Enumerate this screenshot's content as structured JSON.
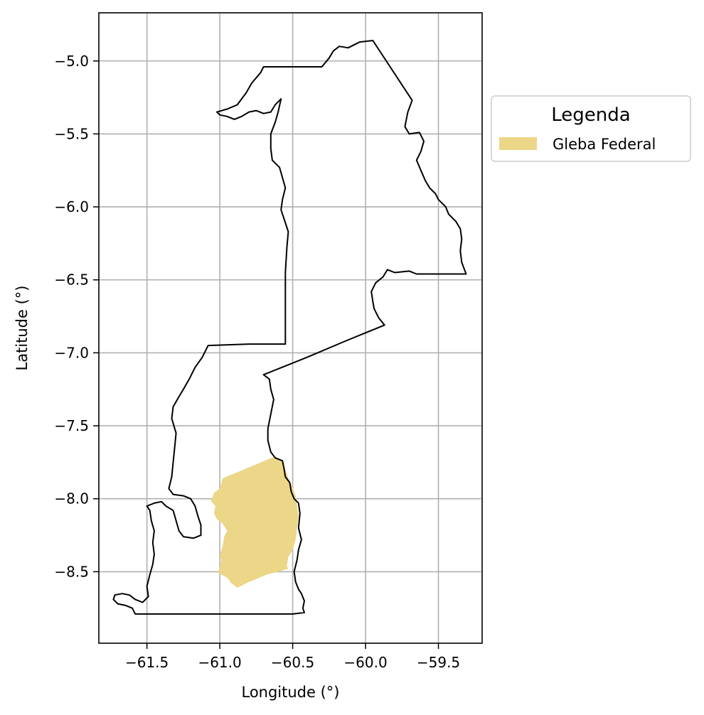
{
  "chart_data": {
    "type": "map",
    "xlabel": "Longitude (°)",
    "ylabel": "Latitude (°)",
    "xlim": [
      -61.83,
      -59.2
    ],
    "ylim": [
      -8.99,
      -4.67
    ],
    "xticks": [
      {
        "value": -61.5,
        "label": "−61.5"
      },
      {
        "value": -61.0,
        "label": "−61.0"
      },
      {
        "value": -60.5,
        "label": "−60.5"
      },
      {
        "value": -60.0,
        "label": "−60.0"
      },
      {
        "value": -59.5,
        "label": "−59.5"
      }
    ],
    "yticks": [
      {
        "value": -5.0,
        "label": "−5.0"
      },
      {
        "value": -5.5,
        "label": "−5.5"
      },
      {
        "value": -6.0,
        "label": "−6.0"
      },
      {
        "value": -6.5,
        "label": "−6.5"
      },
      {
        "value": -7.0,
        "label": "−7.0"
      },
      {
        "value": -7.5,
        "label": "−7.5"
      },
      {
        "value": -8.0,
        "label": "−8.0"
      },
      {
        "value": -8.5,
        "label": "−8.5"
      }
    ],
    "grid": true,
    "legend": {
      "title": "Legenda",
      "placement": "outside-upper-right",
      "entries": [
        {
          "label": "Gleba Federal",
          "color": "#ecd687"
        }
      ]
    },
    "layers": [
      {
        "role": "boundary",
        "stroke": "#000000",
        "fill": "none",
        "coords": [
          [
            -60.04,
            -4.87
          ],
          [
            -59.95,
            -4.86
          ],
          [
            -59.68,
            -5.27
          ],
          [
            -59.71,
            -5.35
          ],
          [
            -59.73,
            -5.45
          ],
          [
            -59.7,
            -5.5
          ],
          [
            -59.63,
            -5.49
          ],
          [
            -59.6,
            -5.55
          ],
          [
            -59.62,
            -5.62
          ],
          [
            -59.65,
            -5.68
          ],
          [
            -59.62,
            -5.75
          ],
          [
            -59.59,
            -5.82
          ],
          [
            -59.56,
            -5.87
          ],
          [
            -59.52,
            -5.91
          ],
          [
            -59.5,
            -5.95
          ],
          [
            -59.45,
            -6.0
          ],
          [
            -59.43,
            -6.05
          ],
          [
            -59.38,
            -6.1
          ],
          [
            -59.35,
            -6.15
          ],
          [
            -59.34,
            -6.22
          ],
          [
            -59.35,
            -6.3
          ],
          [
            -59.34,
            -6.38
          ],
          [
            -59.31,
            -6.46
          ],
          [
            -59.5,
            -6.46
          ],
          [
            -59.65,
            -6.46
          ],
          [
            -59.7,
            -6.44
          ],
          [
            -59.8,
            -6.45
          ],
          [
            -59.85,
            -6.43
          ],
          [
            -59.88,
            -6.48
          ],
          [
            -59.93,
            -6.52
          ],
          [
            -59.96,
            -6.58
          ],
          [
            -59.95,
            -6.65
          ],
          [
            -59.94,
            -6.7
          ],
          [
            -59.91,
            -6.76
          ],
          [
            -59.87,
            -6.81
          ],
          [
            -60.14,
            -6.92
          ],
          [
            -60.4,
            -7.03
          ],
          [
            -60.7,
            -7.15
          ],
          [
            -60.66,
            -7.18
          ],
          [
            -60.65,
            -7.25
          ],
          [
            -60.63,
            -7.32
          ],
          [
            -60.65,
            -7.42
          ],
          [
            -60.67,
            -7.52
          ],
          [
            -60.67,
            -7.6
          ],
          [
            -60.65,
            -7.68
          ],
          [
            -60.62,
            -7.72
          ],
          [
            -60.57,
            -7.74
          ],
          [
            -60.56,
            -7.79
          ],
          [
            -60.55,
            -7.85
          ],
          [
            -60.52,
            -7.89
          ],
          [
            -60.51,
            -7.95
          ],
          [
            -60.49,
            -8.0
          ],
          [
            -60.46,
            -8.03
          ],
          [
            -60.45,
            -8.1
          ],
          [
            -60.46,
            -8.2
          ],
          [
            -60.44,
            -8.28
          ],
          [
            -60.46,
            -8.35
          ],
          [
            -60.47,
            -8.42
          ],
          [
            -60.49,
            -8.5
          ],
          [
            -60.48,
            -8.57
          ],
          [
            -60.46,
            -8.62
          ],
          [
            -60.44,
            -8.65
          ],
          [
            -60.42,
            -8.7
          ],
          [
            -60.43,
            -8.75
          ],
          [
            -60.42,
            -8.78
          ],
          [
            -60.5,
            -8.79
          ],
          [
            -60.8,
            -8.79
          ],
          [
            -61.1,
            -8.79
          ],
          [
            -61.4,
            -8.79
          ],
          [
            -61.58,
            -8.79
          ],
          [
            -61.6,
            -8.75
          ],
          [
            -61.65,
            -8.73
          ],
          [
            -61.7,
            -8.72
          ],
          [
            -61.73,
            -8.69
          ],
          [
            -61.72,
            -8.66
          ],
          [
            -61.67,
            -8.65
          ],
          [
            -61.62,
            -8.66
          ],
          [
            -61.58,
            -8.69
          ],
          [
            -61.53,
            -8.71
          ],
          [
            -61.49,
            -8.67
          ],
          [
            -61.5,
            -8.6
          ],
          [
            -61.48,
            -8.52
          ],
          [
            -61.46,
            -8.45
          ],
          [
            -61.45,
            -8.38
          ],
          [
            -61.46,
            -8.3
          ],
          [
            -61.45,
            -8.22
          ],
          [
            -61.47,
            -8.15
          ],
          [
            -61.48,
            -8.08
          ],
          [
            -61.5,
            -8.05
          ],
          [
            -61.45,
            -8.03
          ],
          [
            -61.4,
            -8.02
          ],
          [
            -61.37,
            -8.05
          ],
          [
            -61.32,
            -8.08
          ],
          [
            -61.3,
            -8.15
          ],
          [
            -61.28,
            -8.22
          ],
          [
            -61.25,
            -8.26
          ],
          [
            -61.18,
            -8.27
          ],
          [
            -61.13,
            -8.25
          ],
          [
            -61.13,
            -8.18
          ],
          [
            -61.15,
            -8.12
          ],
          [
            -61.17,
            -8.05
          ],
          [
            -61.2,
            -8.0
          ],
          [
            -61.25,
            -7.98
          ],
          [
            -61.32,
            -7.97
          ],
          [
            -61.35,
            -7.93
          ],
          [
            -61.33,
            -7.85
          ],
          [
            -61.32,
            -7.75
          ],
          [
            -61.31,
            -7.65
          ],
          [
            -61.3,
            -7.55
          ],
          [
            -61.33,
            -7.45
          ],
          [
            -61.32,
            -7.37
          ],
          [
            -61.28,
            -7.3
          ],
          [
            -61.25,
            -7.25
          ],
          [
            -61.21,
            -7.18
          ],
          [
            -61.17,
            -7.1
          ],
          [
            -61.12,
            -7.03
          ],
          [
            -61.08,
            -6.95
          ],
          [
            -60.8,
            -6.94
          ],
          [
            -60.55,
            -6.94
          ],
          [
            -60.55,
            -6.7
          ],
          [
            -60.55,
            -6.45
          ],
          [
            -60.54,
            -6.28
          ],
          [
            -60.53,
            -6.17
          ],
          [
            -60.56,
            -6.08
          ],
          [
            -60.58,
            -6.02
          ],
          [
            -60.57,
            -5.95
          ],
          [
            -60.55,
            -5.87
          ],
          [
            -60.57,
            -5.8
          ],
          [
            -60.59,
            -5.73
          ],
          [
            -60.64,
            -5.68
          ],
          [
            -60.65,
            -5.6
          ],
          [
            -60.65,
            -5.5
          ],
          [
            -60.62,
            -5.42
          ],
          [
            -60.6,
            -5.35
          ],
          [
            -60.58,
            -5.26
          ],
          [
            -60.62,
            -5.3
          ],
          [
            -60.65,
            -5.35
          ],
          [
            -60.7,
            -5.36
          ],
          [
            -60.75,
            -5.34
          ],
          [
            -60.8,
            -5.35
          ],
          [
            -60.85,
            -5.38
          ],
          [
            -60.9,
            -5.4
          ],
          [
            -60.95,
            -5.38
          ],
          [
            -61.0,
            -5.37
          ],
          [
            -61.02,
            -5.35
          ],
          [
            -60.95,
            -5.33
          ],
          [
            -60.88,
            -5.3
          ],
          [
            -60.85,
            -5.26
          ],
          [
            -60.82,
            -5.22
          ],
          [
            -60.78,
            -5.15
          ],
          [
            -60.72,
            -5.08
          ],
          [
            -60.7,
            -5.04
          ],
          [
            -60.3,
            -5.04
          ],
          [
            -60.25,
            -4.98
          ],
          [
            -60.22,
            -4.93
          ],
          [
            -60.18,
            -4.9
          ],
          [
            -60.12,
            -4.91
          ],
          [
            -60.08,
            -4.89
          ]
        ]
      },
      {
        "role": "area",
        "name": "Gleba Federal",
        "fill": "#ecd687",
        "coords": [
          [
            -60.98,
            -7.86
          ],
          [
            -60.62,
            -7.71
          ],
          [
            -60.58,
            -7.74
          ],
          [
            -60.55,
            -7.8
          ],
          [
            -60.53,
            -7.86
          ],
          [
            -60.5,
            -7.92
          ],
          [
            -60.48,
            -7.98
          ],
          [
            -60.47,
            -8.05
          ],
          [
            -60.46,
            -8.12
          ],
          [
            -60.47,
            -8.2
          ],
          [
            -60.48,
            -8.28
          ],
          [
            -60.5,
            -8.35
          ],
          [
            -60.53,
            -8.4
          ],
          [
            -60.54,
            -8.46
          ],
          [
            -60.53,
            -8.48
          ],
          [
            -60.6,
            -8.5
          ],
          [
            -60.68,
            -8.52
          ],
          [
            -60.75,
            -8.55
          ],
          [
            -60.8,
            -8.57
          ],
          [
            -60.88,
            -8.61
          ],
          [
            -60.92,
            -8.58
          ],
          [
            -60.95,
            -8.54
          ],
          [
            -61.01,
            -8.51
          ],
          [
            -61.0,
            -8.46
          ],
          [
            -60.99,
            -8.42
          ],
          [
            -61.0,
            -8.39
          ],
          [
            -60.98,
            -8.32
          ],
          [
            -60.97,
            -8.26
          ],
          [
            -60.95,
            -8.22
          ],
          [
            -60.98,
            -8.17
          ],
          [
            -61.02,
            -8.14
          ],
          [
            -61.04,
            -8.1
          ],
          [
            -61.03,
            -8.05
          ],
          [
            -61.06,
            -8.02
          ],
          [
            -61.04,
            -7.96
          ],
          [
            -61.0,
            -7.93
          ]
        ]
      }
    ]
  }
}
